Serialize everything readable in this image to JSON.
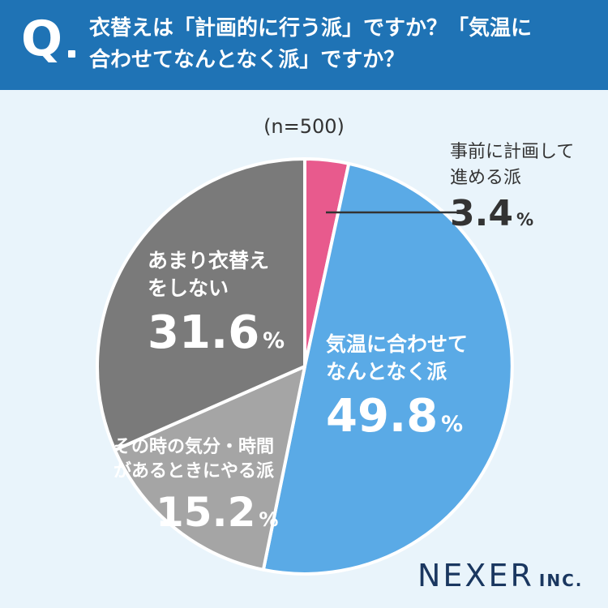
{
  "header": {
    "q_mark": "Q",
    "question_line1": "衣替えは「計画的に行う派」ですか？「気温に",
    "question_line2": "合わせてなんとなく派」ですか？"
  },
  "sample_label": "(n=500)",
  "brand": {
    "name": "NEXER",
    "suffix": "INC."
  },
  "chart_data": {
    "type": "pie",
    "unit": "%",
    "slices": [
      {
        "key": "plan",
        "label_line1": "事前に計画して",
        "label_line2": "進める派",
        "value": 3.4,
        "value_text": "3.4",
        "color": "#e85a8d"
      },
      {
        "key": "temp",
        "label_line1": "気温に合わせて",
        "label_line2": "なんとなく派",
        "value": 49.8,
        "value_text": "49.8",
        "color": "#5aaae6"
      },
      {
        "key": "mood",
        "label_line1": "その時の気分・時間",
        "label_line2": "があるときにやる派",
        "value": 15.2,
        "value_text": "15.2",
        "color": "#a5a5a5"
      },
      {
        "key": "none",
        "label_line1": "あまり衣替え",
        "label_line2": "をしない",
        "value": 31.6,
        "value_text": "31.6",
        "color": "#7a7a7a"
      }
    ],
    "start": "top",
    "direction": "clockwise"
  }
}
